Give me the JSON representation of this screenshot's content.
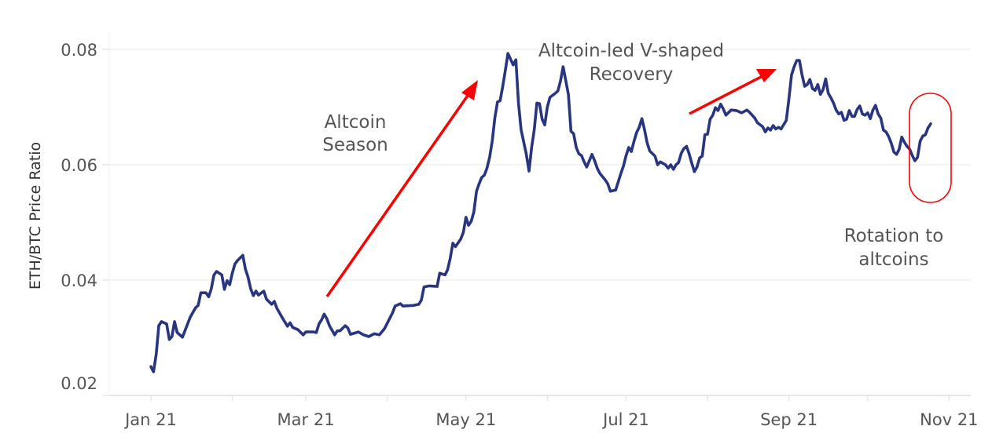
{
  "chart_data": {
    "type": "line",
    "title": "",
    "xlabel": "",
    "ylabel": "ETH/BTC Price Ratio",
    "ylim": [
      0.02,
      0.08
    ],
    "xlim": [
      "2021-01-01",
      "2021-11-01"
    ],
    "yticks": [
      "0.02",
      "0.04",
      "0.06",
      "0.08"
    ],
    "ytick_values": [
      0.02,
      0.04,
      0.06,
      0.08
    ],
    "xticks": [
      "Jan 21",
      "Mar 21",
      "May 21",
      "Jul 21",
      "Sep 21",
      "Nov 21"
    ],
    "xtick_dates": [
      "2021-01-01",
      "2021-03-01",
      "2021-05-01",
      "2021-07-01",
      "2021-09-01",
      "2021-11-01"
    ],
    "grid": true,
    "line_color": "#283580",
    "annotation_color": "#ff0000",
    "annotations": [
      {
        "line1": "Altcoin",
        "line2": "Season"
      },
      {
        "line1": "Altcoin-led V-shaped",
        "line2": "Recovery"
      },
      {
        "line1": "Rotation to",
        "line2": "altcoins"
      }
    ],
    "series": [
      {
        "x": [
          "2021-01-01",
          "2021-01-02",
          "2021-01-03",
          "2021-01-04",
          "2021-01-05",
          "2021-01-07",
          "2021-01-08",
          "2021-01-09",
          "2021-01-10",
          "2021-01-11",
          "2021-01-13",
          "2021-01-16",
          "2021-01-18",
          "2021-01-19",
          "2021-01-20",
          "2021-01-22",
          "2021-01-23",
          "2021-01-24",
          "2021-01-25",
          "2021-01-26",
          "2021-01-28",
          "2021-01-29",
          "2021-01-30",
          "2021-01-31",
          "2021-02-01",
          "2021-02-02",
          "2021-02-03",
          "2021-02-05",
          "2021-02-06",
          "2021-02-07",
          "2021-02-08",
          "2021-02-09",
          "2021-02-10",
          "2021-02-11",
          "2021-02-13",
          "2021-02-14",
          "2021-02-16",
          "2021-02-17",
          "2021-02-18",
          "2021-02-20",
          "2021-02-22",
          "2021-02-23",
          "2021-02-24",
          "2021-02-26",
          "2021-02-28",
          "2021-03-01",
          "2021-03-04",
          "2021-03-05",
          "2021-03-06",
          "2021-03-07",
          "2021-03-08",
          "2021-03-09",
          "2021-03-10",
          "2021-03-12",
          "2021-03-13",
          "2021-03-14",
          "2021-03-16",
          "2021-03-17",
          "2021-03-18",
          "2021-03-21",
          "2021-03-23",
          "2021-03-25",
          "2021-03-27",
          "2021-03-29",
          "2021-03-31",
          "2021-04-01",
          "2021-04-03",
          "2021-04-04",
          "2021-04-06",
          "2021-04-07",
          "2021-04-11",
          "2021-04-13",
          "2021-04-14",
          "2021-04-15",
          "2021-04-17",
          "2021-04-20",
          "2021-04-21",
          "2021-04-23",
          "2021-04-24",
          "2021-04-25",
          "2021-04-26",
          "2021-04-27",
          "2021-04-29",
          "2021-04-30",
          "2021-05-01",
          "2021-05-02",
          "2021-05-03",
          "2021-05-04",
          "2021-05-05",
          "2021-05-06",
          "2021-05-07",
          "2021-05-08",
          "2021-05-09",
          "2021-05-10",
          "2021-05-11",
          "2021-05-12",
          "2021-05-13",
          "2021-05-14",
          "2021-05-15",
          "2021-05-16",
          "2021-05-17",
          "2021-05-19",
          "2021-05-20",
          "2021-05-21",
          "2021-05-22",
          "2021-05-24",
          "2021-05-25",
          "2021-05-26",
          "2021-05-27",
          "2021-05-28",
          "2021-05-29",
          "2021-05-30",
          "2021-05-31",
          "2021-06-01",
          "2021-06-02",
          "2021-06-04",
          "2021-06-05",
          "2021-06-06",
          "2021-06-07",
          "2021-06-09",
          "2021-06-10",
          "2021-06-11",
          "2021-06-12",
          "2021-06-13",
          "2021-06-14",
          "2021-06-15",
          "2021-06-16",
          "2021-06-18",
          "2021-06-19",
          "2021-06-20",
          "2021-06-21",
          "2021-06-23",
          "2021-06-24",
          "2021-06-25",
          "2021-06-27",
          "2021-06-29",
          "2021-06-30",
          "2021-07-01",
          "2021-07-02",
          "2021-07-03",
          "2021-07-04",
          "2021-07-05",
          "2021-07-06",
          "2021-07-07",
          "2021-07-08",
          "2021-07-09",
          "2021-07-10",
          "2021-07-12",
          "2021-07-13",
          "2021-07-14",
          "2021-07-16",
          "2021-07-17",
          "2021-07-18",
          "2021-07-19",
          "2021-07-20",
          "2021-07-21",
          "2021-07-22",
          "2021-07-23",
          "2021-07-24",
          "2021-07-25",
          "2021-07-26",
          "2021-07-27",
          "2021-07-28",
          "2021-07-29",
          "2021-07-30",
          "2021-07-31",
          "2021-08-01",
          "2021-08-02",
          "2021-08-03",
          "2021-08-04",
          "2021-08-05",
          "2021-08-06",
          "2021-08-07",
          "2021-08-08",
          "2021-08-10",
          "2021-08-12",
          "2021-08-14",
          "2021-08-16",
          "2021-08-17",
          "2021-08-19",
          "2021-08-20",
          "2021-08-22",
          "2021-08-23",
          "2021-08-24",
          "2021-08-25",
          "2021-08-26",
          "2021-08-27",
          "2021-08-28",
          "2021-08-29",
          "2021-08-31",
          "2021-09-01",
          "2021-09-02",
          "2021-09-03",
          "2021-09-04",
          "2021-09-05",
          "2021-09-06",
          "2021-09-07",
          "2021-09-08",
          "2021-09-09",
          "2021-09-10",
          "2021-09-11",
          "2021-09-12",
          "2021-09-13",
          "2021-09-14",
          "2021-09-15",
          "2021-09-16",
          "2021-09-17",
          "2021-09-18",
          "2021-09-19",
          "2021-09-20",
          "2021-09-21",
          "2021-09-22",
          "2021-09-23",
          "2021-09-24",
          "2021-09-25",
          "2021-09-26",
          "2021-09-27",
          "2021-09-28",
          "2021-09-29",
          "2021-09-30",
          "2021-10-01",
          "2021-10-02",
          "2021-10-03",
          "2021-10-04",
          "2021-10-05",
          "2021-10-06",
          "2021-10-07",
          "2021-10-08",
          "2021-10-09",
          "2021-10-10",
          "2021-10-11",
          "2021-10-12",
          "2021-10-13",
          "2021-10-14",
          "2021-10-15",
          "2021-10-16",
          "2021-10-17",
          "2021-10-18",
          "2021-10-19",
          "2021-10-20",
          "2021-10-21",
          "2021-10-22",
          "2021-10-23",
          "2021-10-24",
          "2021-10-25"
        ],
        "y": [
          0.025,
          0.0241,
          0.0271,
          0.0321,
          0.0328,
          0.0324,
          0.0297,
          0.0302,
          0.0328,
          0.0309,
          0.0301,
          0.0336,
          0.0352,
          0.0356,
          0.0378,
          0.0378,
          0.0371,
          0.0385,
          0.0409,
          0.0415,
          0.0409,
          0.0384,
          0.0399,
          0.0392,
          0.0412,
          0.0428,
          0.0434,
          0.0443,
          0.0419,
          0.0405,
          0.0385,
          0.0373,
          0.0381,
          0.0374,
          0.0381,
          0.0367,
          0.0358,
          0.0363,
          0.0351,
          0.0335,
          0.032,
          0.0326,
          0.0318,
          0.0314,
          0.0305,
          0.031,
          0.031,
          0.0309,
          0.0324,
          0.0331,
          0.0341,
          0.0333,
          0.0321,
          0.0305,
          0.0312,
          0.0312,
          0.0321,
          0.0317,
          0.0306,
          0.031,
          0.0305,
          0.0302,
          0.0307,
          0.0305,
          0.0316,
          0.0325,
          0.0343,
          0.0355,
          0.0359,
          0.0355,
          0.0356,
          0.0358,
          0.0365,
          0.0388,
          0.039,
          0.0389,
          0.0412,
          0.0409,
          0.0418,
          0.0438,
          0.0464,
          0.0458,
          0.0471,
          0.0483,
          0.0509,
          0.0495,
          0.0502,
          0.0518,
          0.0554,
          0.0567,
          0.0578,
          0.0582,
          0.0594,
          0.0613,
          0.0641,
          0.0681,
          0.0709,
          0.0711,
          0.0736,
          0.0764,
          0.0793,
          0.0773,
          0.0782,
          0.0707,
          0.0661,
          0.0618,
          0.0589,
          0.063,
          0.066,
          0.0707,
          0.0706,
          0.0679,
          0.0669,
          0.07,
          0.0717,
          0.0724,
          0.0728,
          0.0745,
          0.077,
          0.0722,
          0.0658,
          0.0654,
          0.063,
          0.0619,
          0.0616,
          0.0605,
          0.0596,
          0.0618,
          0.0607,
          0.0594,
          0.0585,
          0.0574,
          0.0567,
          0.0554,
          0.0556,
          0.0585,
          0.0598,
          0.0616,
          0.063,
          0.0623,
          0.0641,
          0.0656,
          0.0665,
          0.068,
          0.0661,
          0.0638,
          0.0624,
          0.0615,
          0.06,
          0.0605,
          0.06,
          0.0594,
          0.06,
          0.0592,
          0.06,
          0.0604,
          0.062,
          0.0628,
          0.0632,
          0.0619,
          0.0603,
          0.0588,
          0.0596,
          0.0612,
          0.0615,
          0.0652,
          0.0653,
          0.0679,
          0.0686,
          0.0699,
          0.0694,
          0.0705,
          0.0697,
          0.0686,
          0.0695,
          0.0694,
          0.069,
          0.0695,
          0.0691,
          0.0681,
          0.0673,
          0.0666,
          0.0657,
          0.0664,
          0.066,
          0.0668,
          0.0662,
          0.0665,
          0.0662,
          0.0677,
          0.0714,
          0.0756,
          0.077,
          0.0781,
          0.0781,
          0.0756,
          0.0736,
          0.0739,
          0.0748,
          0.0732,
          0.0729,
          0.0739,
          0.0722,
          0.073,
          0.0749,
          0.0724,
          0.0716,
          0.0707,
          0.0695,
          0.0688,
          0.0691,
          0.0677,
          0.0679,
          0.0694,
          0.0684,
          0.0684,
          0.0696,
          0.0702,
          0.0688,
          0.0686,
          0.069,
          0.068,
          0.0695,
          0.0703,
          0.0688,
          0.0681,
          0.066,
          0.0657,
          0.0649,
          0.0637,
          0.0622,
          0.0618,
          0.0627,
          0.0648,
          0.0639,
          0.0632,
          0.0627,
          0.0616,
          0.0607,
          0.0613,
          0.0641,
          0.065,
          0.0652,
          0.0664,
          0.0671
        ]
      }
    ]
  }
}
